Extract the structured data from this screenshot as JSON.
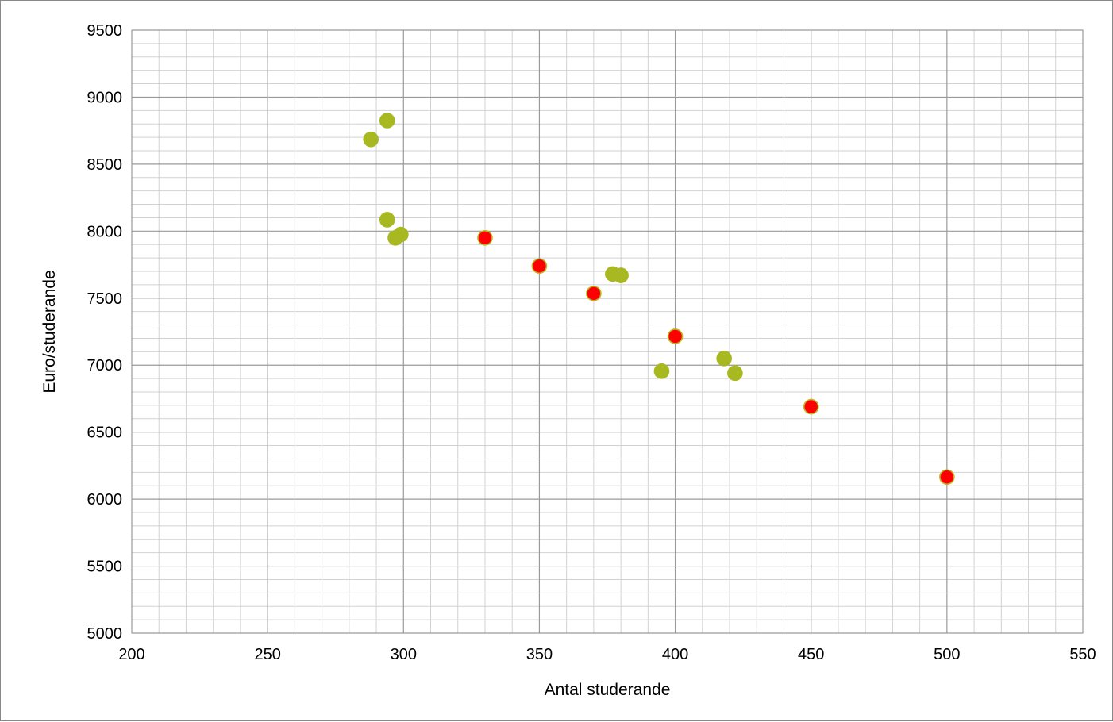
{
  "chart_data": {
    "type": "scatter",
    "title": "",
    "xlabel": "Antal studerande",
    "ylabel": "Euro/studerande",
    "xlim": [
      200,
      550
    ],
    "ylim": [
      5000,
      9500
    ],
    "x_ticks": [
      "200",
      "250",
      "300",
      "350",
      "400",
      "450",
      "500",
      "550"
    ],
    "y_ticks": [
      "5000",
      "5500",
      "6000",
      "6500",
      "7000",
      "7500",
      "8000",
      "8500",
      "9000",
      "9500"
    ],
    "x_major_step": 50,
    "x_minor_step": 10,
    "y_major_step": 500,
    "y_minor_step": 100,
    "grid": true,
    "legend": "none",
    "series": [
      {
        "color": "#a8b820",
        "edge_color": "#a8b820",
        "points": [
          {
            "x": 288,
            "y": 8685
          },
          {
            "x": 294,
            "y": 8825
          },
          {
            "x": 294,
            "y": 8085
          },
          {
            "x": 297,
            "y": 7950
          },
          {
            "x": 299,
            "y": 7975
          },
          {
            "x": 377,
            "y": 7680
          },
          {
            "x": 380,
            "y": 7670
          },
          {
            "x": 395,
            "y": 6955
          },
          {
            "x": 418,
            "y": 7050
          },
          {
            "x": 422,
            "y": 6940
          }
        ]
      },
      {
        "color": "#ff0000",
        "edge_color": "#b8b820",
        "points": [
          {
            "x": 330,
            "y": 7950
          },
          {
            "x": 350,
            "y": 7740
          },
          {
            "x": 370,
            "y": 7535
          },
          {
            "x": 400,
            "y": 7215
          },
          {
            "x": 450,
            "y": 6690
          },
          {
            "x": 500,
            "y": 6165
          }
        ]
      }
    ]
  }
}
